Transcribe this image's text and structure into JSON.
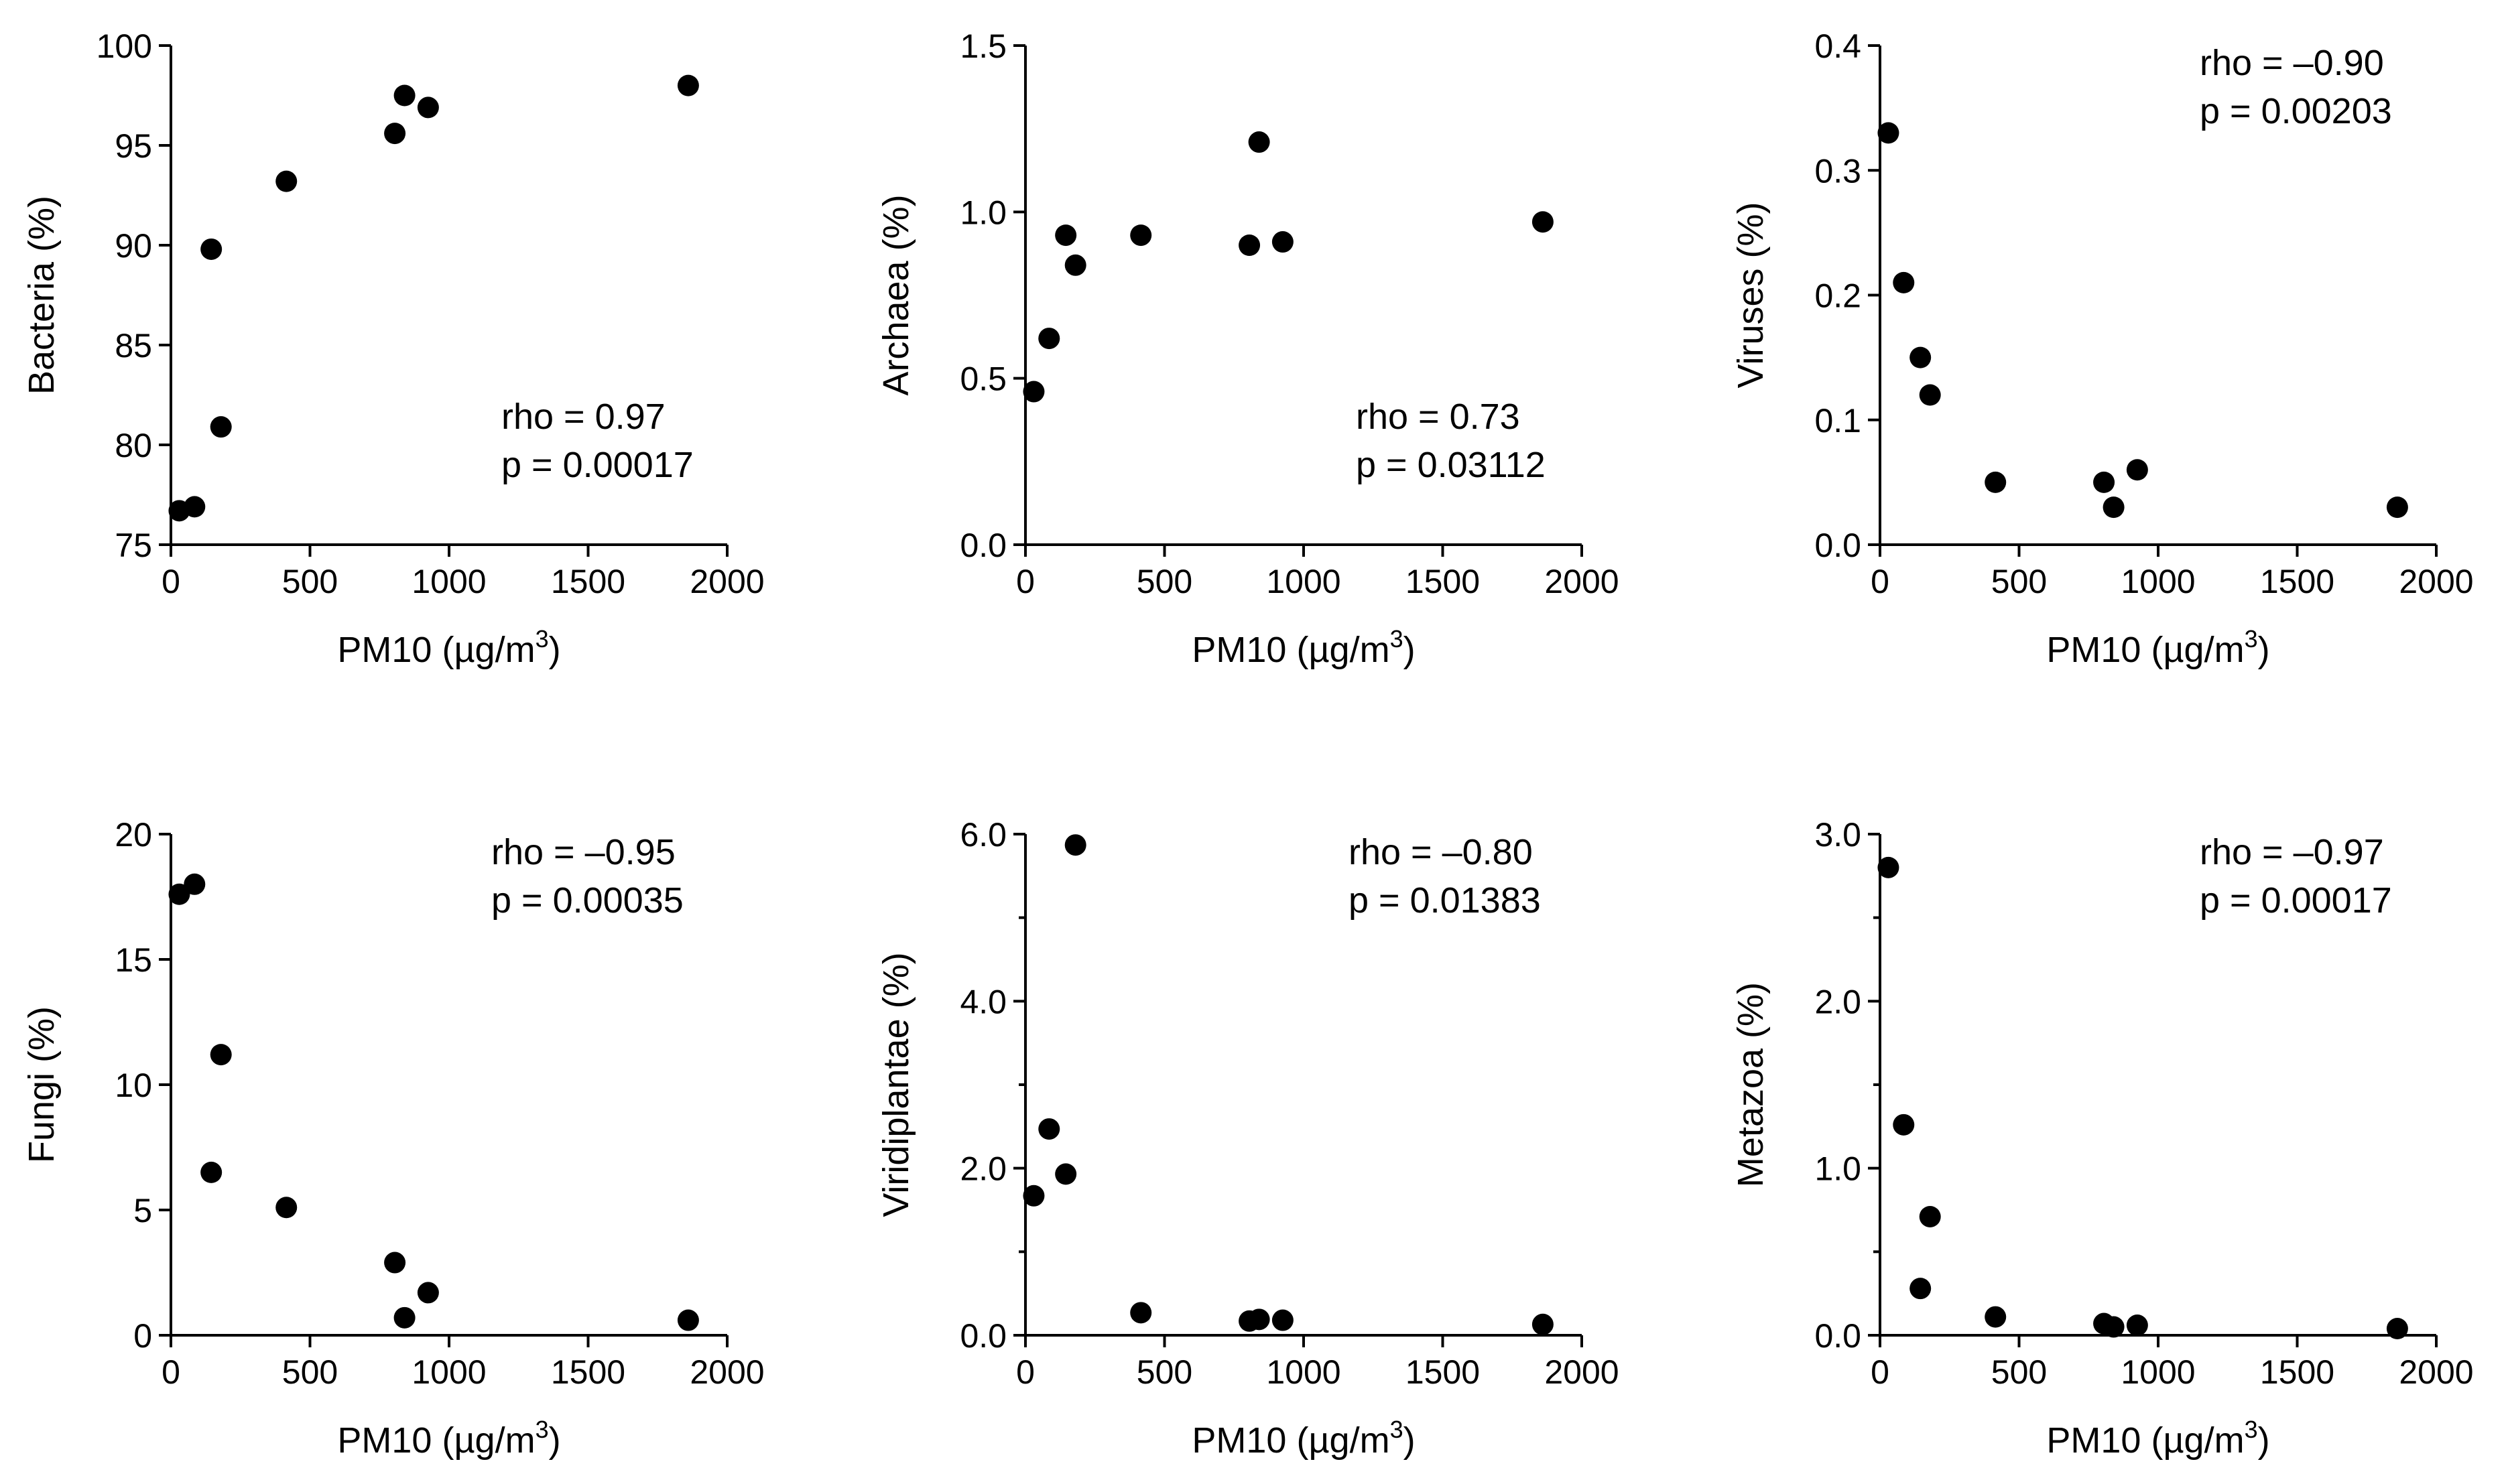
{
  "chart_data": [
    {
      "type": "scatter",
      "ylabel": "Bacteria (%)",
      "xlabel": "PM10 (µg/m",
      "xlabel_sup": "3",
      "xlabel_end": ")",
      "xlim": [
        0,
        2000
      ],
      "ylim": [
        75,
        100
      ],
      "xticks": [
        0,
        500,
        1000,
        1500,
        2000
      ],
      "xtick_labels": [
        "0",
        "500",
        "1000",
        "1500",
        "2000"
      ],
      "yticks": [
        75,
        80,
        85,
        90,
        95,
        100
      ],
      "ytick_labels": [
        "75",
        "80",
        "85",
        "90",
        "95",
        "100"
      ],
      "annotation": [
        "rho = 0.97",
        "p = 0.00017"
      ],
      "annotation_position": "bottom-right",
      "x": [
        30,
        85,
        145,
        180,
        415,
        805,
        840,
        925,
        1860
      ],
      "y": [
        76.7,
        76.9,
        89.8,
        80.9,
        93.2,
        95.6,
        97.5,
        96.9,
        98.0
      ]
    },
    {
      "type": "scatter",
      "ylabel": "Archaea (%)",
      "xlabel": "PM10 (µg/m",
      "xlabel_sup": "3",
      "xlabel_end": ")",
      "xlim": [
        0,
        2000
      ],
      "ylim": [
        0,
        1.5
      ],
      "xticks": [
        0,
        500,
        1000,
        1500,
        2000
      ],
      "xtick_labels": [
        "0",
        "500",
        "1000",
        "1500",
        "2000"
      ],
      "yticks": [
        0,
        0.5,
        1.0,
        1.5
      ],
      "ytick_labels": [
        "0.0",
        "0.5",
        "1.0",
        "1.5"
      ],
      "annotation": [
        "rho = 0.73",
        "p = 0.03112"
      ],
      "annotation_position": "bottom-right",
      "x": [
        30,
        85,
        145,
        180,
        415,
        805,
        840,
        925,
        1860
      ],
      "y": [
        0.46,
        0.62,
        0.93,
        0.84,
        0.93,
        0.9,
        1.21,
        0.91,
        0.97
      ]
    },
    {
      "type": "scatter",
      "ylabel": "Viruses (%)",
      "xlabel": "PM10 (µg/m",
      "xlabel_sup": "3",
      "xlabel_end": ")",
      "xlim": [
        0,
        2000
      ],
      "ylim": [
        0,
        0.4
      ],
      "xticks": [
        0,
        500,
        1000,
        1500,
        2000
      ],
      "xtick_labels": [
        "0",
        "500",
        "1000",
        "1500",
        "2000"
      ],
      "yticks": [
        0,
        0.1,
        0.2,
        0.3,
        0.4
      ],
      "ytick_labels": [
        "0.0",
        "0.1",
        "0.2",
        "0.3",
        "0.4"
      ],
      "annotation": [
        "rho = –0.90",
        "p = 0.00203"
      ],
      "annotation_position": "top-right",
      "x": [
        30,
        85,
        145,
        180,
        415,
        805,
        840,
        925,
        1860
      ],
      "y": [
        0.33,
        0.21,
        0.15,
        0.12,
        0.05,
        0.05,
        0.03,
        0.06,
        0.03
      ]
    },
    {
      "type": "scatter",
      "ylabel": "Fungi (%)",
      "xlabel": "PM10 (µg/m",
      "xlabel_sup": "3",
      "xlabel_end": ")",
      "xlim": [
        0,
        2000
      ],
      "ylim": [
        0,
        20
      ],
      "xticks": [
        0,
        500,
        1000,
        1500,
        2000
      ],
      "xtick_labels": [
        "0",
        "500",
        "1000",
        "1500",
        "2000"
      ],
      "yticks": [
        0,
        5,
        10,
        15,
        20
      ],
      "ytick_labels": [
        "0",
        "5",
        "10",
        "15",
        "20"
      ],
      "annotation": [
        "rho = –0.95",
        "p = 0.00035"
      ],
      "annotation_position": "top-right",
      "x": [
        30,
        85,
        145,
        180,
        415,
        805,
        840,
        925,
        1860
      ],
      "y": [
        17.6,
        18.0,
        6.5,
        11.2,
        5.1,
        2.9,
        0.7,
        1.7,
        0.6
      ]
    },
    {
      "type": "scatter",
      "ylabel": "Viridiplantae (%)",
      "xlabel": "PM10 (µg/m",
      "xlabel_sup": "3",
      "xlabel_end": ")",
      "xlim": [
        0,
        2000
      ],
      "ylim": [
        0,
        6
      ],
      "xticks": [
        0,
        500,
        1000,
        1500,
        2000
      ],
      "xtick_labels": [
        "0",
        "500",
        "1000",
        "1500",
        "2000"
      ],
      "yticks": [
        0,
        2,
        4,
        6
      ],
      "ytick_labels": [
        "0.0",
        "2.0",
        "4.0",
        "6.0"
      ],
      "yminor": [
        1,
        3,
        5
      ],
      "annotation": [
        "rho = –0.80",
        "p = 0.01383"
      ],
      "annotation_position": "top-right",
      "x": [
        30,
        85,
        145,
        180,
        415,
        805,
        840,
        925,
        1860
      ],
      "y": [
        1.67,
        2.47,
        1.93,
        5.87,
        0.27,
        0.17,
        0.19,
        0.18,
        0.13
      ]
    },
    {
      "type": "scatter",
      "ylabel": "Metazoa (%)",
      "xlabel": "PM10 (µg/m",
      "xlabel_sup": "3",
      "xlabel_end": ")",
      "xlim": [
        0,
        2000
      ],
      "ylim": [
        0,
        3
      ],
      "xticks": [
        0,
        500,
        1000,
        1500,
        2000
      ],
      "xtick_labels": [
        "0",
        "500",
        "1000",
        "1500",
        "2000"
      ],
      "yticks": [
        0,
        1,
        2,
        3
      ],
      "ytick_labels": [
        "0.0",
        "1.0",
        "2.0",
        "3.0"
      ],
      "yminor": [
        0.5,
        1.5,
        2.5
      ],
      "annotation": [
        "rho = –0.97",
        "p = 0.00017"
      ],
      "annotation_position": "top-right",
      "x": [
        30,
        85,
        145,
        180,
        415,
        805,
        840,
        925,
        1860
      ],
      "y": [
        2.8,
        1.26,
        0.28,
        0.71,
        0.11,
        0.07,
        0.05,
        0.06,
        0.04
      ]
    }
  ]
}
